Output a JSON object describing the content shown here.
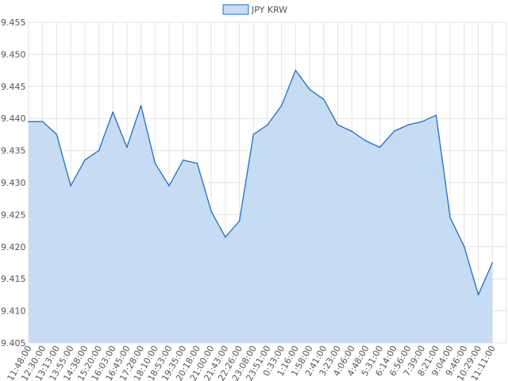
{
  "chart_data": {
    "type": "area",
    "title": "",
    "xlabel": "",
    "ylabel": "",
    "legend": {
      "position": "top-center",
      "entries": [
        "JPY KRW"
      ]
    },
    "grid": true,
    "ylim": [
      9.405,
      9.455
    ],
    "y_ticks": [
      "9.455",
      "9.450",
      "9.445",
      "9.440",
      "9.435",
      "9.430",
      "9.425",
      "9.420",
      "9.415",
      "9.410",
      "9.405"
    ],
    "x_ticks": [
      "11:48:00",
      "12:30:00",
      "13:13:00",
      "13:55:00",
      "14:38:00",
      "15:20:00",
      "16:03:00",
      "16:45:00",
      "17:28:00",
      "18:10:00",
      "18:53:00",
      "19:35:00",
      "20:18:00",
      "21:00:00",
      "21:43:00",
      "22:26:00",
      "23:08:00",
      "23:51:00",
      "0:33:00",
      "1:16:00",
      "1:58:00",
      "2:41:00",
      "3:23:00",
      "4:06:00",
      "4:48:00",
      "5:31:00",
      "6:14:00",
      "6:56:00",
      "7:39:00",
      "8:21:00",
      "9:04:00",
      "9:46:00",
      "10:29:00",
      "11:11:00"
    ],
    "colors": {
      "line": "#1a6fc9",
      "fill": "#c6dcf2",
      "grid": "#e3e3e3"
    },
    "series": [
      {
        "name": "JPY KRW",
        "x": [
          "11:48:00",
          "12:30:00",
          "13:13:00",
          "13:55:00",
          "14:38:00",
          "15:20:00",
          "16:03:00",
          "16:45:00",
          "17:28:00",
          "18:10:00",
          "18:53:00",
          "19:35:00",
          "20:18:00",
          "21:00:00",
          "21:43:00",
          "22:26:00",
          "23:08:00",
          "23:51:00",
          "0:33:00",
          "1:16:00",
          "1:58:00",
          "2:41:00",
          "3:23:00",
          "4:06:00",
          "4:48:00",
          "5:31:00",
          "6:14:00",
          "6:56:00",
          "7:39:00",
          "8:21:00",
          "9:04:00",
          "9:46:00",
          "10:29:00",
          "11:11:00"
        ],
        "values": [
          9.4395,
          9.4395,
          9.4375,
          9.4295,
          9.4335,
          9.435,
          9.441,
          9.4355,
          9.442,
          9.433,
          9.4295,
          9.4335,
          9.433,
          9.4255,
          9.4215,
          9.424,
          9.4375,
          9.439,
          9.442,
          9.4475,
          9.4445,
          9.443,
          9.439,
          9.438,
          9.4365,
          9.4355,
          9.438,
          9.439,
          9.4395,
          9.4405,
          9.4245,
          9.42,
          9.4125,
          9.4175
        ]
      }
    ]
  }
}
